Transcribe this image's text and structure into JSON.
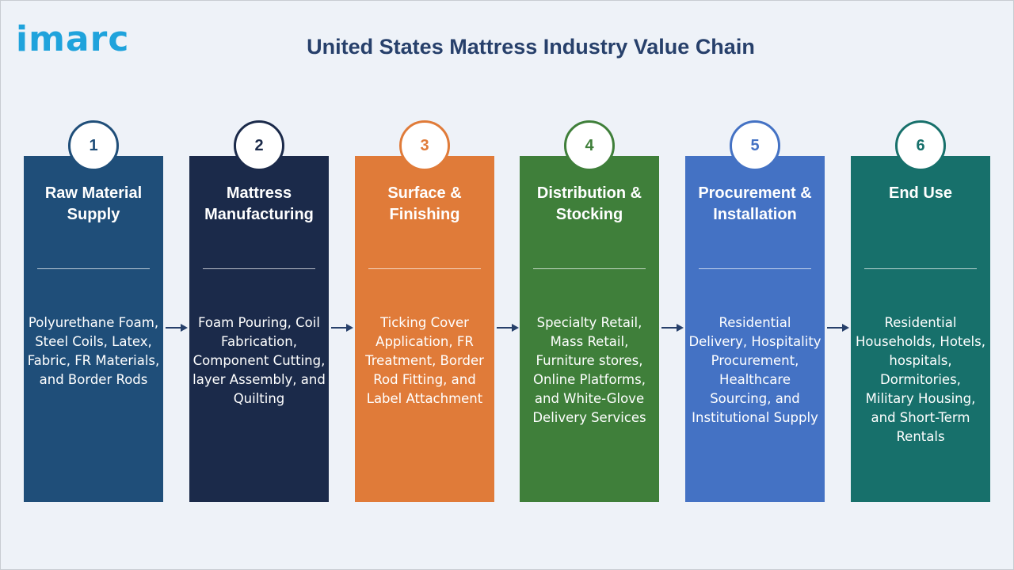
{
  "brand": {
    "logo_text": "imarc"
  },
  "title": "United States Mattress Industry Value Chain",
  "colors": {
    "background": "#eef2f8",
    "title": "#27406b",
    "logo": "#1fa3dc",
    "arrow": "#27406b"
  },
  "stages": [
    {
      "number": "1",
      "heading": "Raw Material Supply",
      "description": "Polyurethane Foam, Steel Coils, Latex, Fabric, FR Materials, and Border Rods",
      "color": "#1f4e79"
    },
    {
      "number": "2",
      "heading": "Mattress Manufacturing",
      "description": "Foam Pouring, Coil Fabrication, Component Cutting, layer Assembly, and Quilting",
      "color": "#1b2a4a"
    },
    {
      "number": "3",
      "heading": "Surface & Finishing",
      "description": "Ticking Cover Application, FR Treatment, Border Rod Fitting, and Label Attachment",
      "color": "#e07b39"
    },
    {
      "number": "4",
      "heading": "Distribution & Stocking",
      "description": "Specialty Retail, Mass Retail, Furniture stores, Online Platforms, and White-Glove Delivery Services",
      "color": "#3f7f3a"
    },
    {
      "number": "5",
      "heading": "Procurement & Installation",
      "description": "Residential Delivery, Hospitality Procurement, Healthcare Sourcing, and Institutional Supply",
      "color": "#4472c4"
    },
    {
      "number": "6",
      "heading": "End Use",
      "description": "Residential Households, Hotels, hospitals, Dormitories, Military Housing, and Short-Term Rentals",
      "color": "#17706b"
    }
  ]
}
